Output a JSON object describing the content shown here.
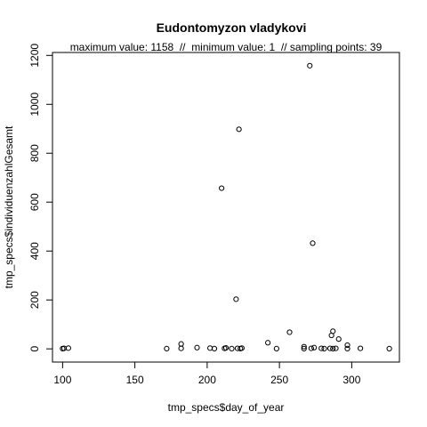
{
  "chart_data": {
    "type": "scatter",
    "title": "Eudontomyzon vladykovi",
    "subtitle": "maximum value: 1158  //  minimum value: 1  // sampling points: 39",
    "xlabel": "tmp_specs$day_of_year",
    "ylabel": "tmp_specs$individuenzahlGesamt",
    "xlim": [
      93,
      333
    ],
    "ylim": [
      -54,
      1212
    ],
    "xticks": [
      100,
      150,
      200,
      250,
      300
    ],
    "yticks": [
      0,
      200,
      400,
      600,
      800,
      1000,
      1200
    ],
    "grid": false,
    "marker": "open-circle",
    "points": [
      {
        "x": 100,
        "y": 1
      },
      {
        "x": 101,
        "y": 2
      },
      {
        "x": 104,
        "y": 3
      },
      {
        "x": 172,
        "y": 1
      },
      {
        "x": 182,
        "y": 20
      },
      {
        "x": 182,
        "y": 2
      },
      {
        "x": 193,
        "y": 5
      },
      {
        "x": 202,
        "y": 3
      },
      {
        "x": 205,
        "y": 1
      },
      {
        "x": 210,
        "y": 657
      },
      {
        "x": 212,
        "y": 2
      },
      {
        "x": 213,
        "y": 4
      },
      {
        "x": 217,
        "y": 1
      },
      {
        "x": 220,
        "y": 203
      },
      {
        "x": 221,
        "y": 2
      },
      {
        "x": 222,
        "y": 898
      },
      {
        "x": 223,
        "y": 1
      },
      {
        "x": 224,
        "y": 3
      },
      {
        "x": 242,
        "y": 25
      },
      {
        "x": 248,
        "y": 1
      },
      {
        "x": 257,
        "y": 68
      },
      {
        "x": 267,
        "y": 9
      },
      {
        "x": 267,
        "y": 1
      },
      {
        "x": 271,
        "y": 1158
      },
      {
        "x": 272,
        "y": 2
      },
      {
        "x": 273,
        "y": 432
      },
      {
        "x": 274,
        "y": 5
      },
      {
        "x": 279,
        "y": 2
      },
      {
        "x": 281,
        "y": 1
      },
      {
        "x": 285,
        "y": 2
      },
      {
        "x": 286,
        "y": 55
      },
      {
        "x": 287,
        "y": 72
      },
      {
        "x": 287,
        "y": 1
      },
      {
        "x": 289,
        "y": 2
      },
      {
        "x": 291,
        "y": 40
      },
      {
        "x": 297,
        "y": 15
      },
      {
        "x": 297,
        "y": 1
      },
      {
        "x": 306,
        "y": 2
      },
      {
        "x": 326,
        "y": 1
      }
    ]
  }
}
